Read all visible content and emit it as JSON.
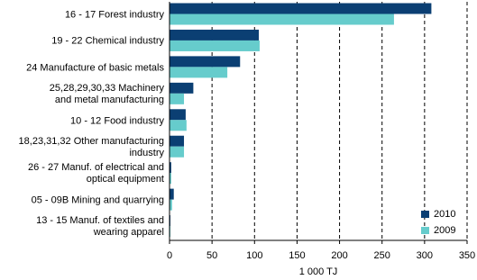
{
  "chart_data": {
    "type": "hbar",
    "categories": [
      "16 - 17 Forest industry",
      "19 - 22 Chemical industry",
      "24 Manufacture of basic metals",
      "25,28,29,30,33 Machinery\nand metal manufacturing",
      "10 - 12 Food industry",
      "18,23,31,32 Other manufacturing\nindustry",
      "26 - 27 Manuf. of electrical and\noptical equipment",
      "05 - 09B Mining and quarrying",
      "13 - 15 Manuf. of textiles and\nwearing apparel"
    ],
    "series": [
      {
        "name": "2010",
        "color": "#0b3f73",
        "values": [
          308,
          105,
          83,
          28,
          19,
          17,
          2,
          5,
          1
        ]
      },
      {
        "name": "2009",
        "color": "#66cccc",
        "values": [
          264,
          106,
          68,
          17,
          20,
          17,
          2,
          3,
          1
        ]
      }
    ],
    "xlabel": "1 000 TJ",
    "xlim": [
      0,
      350
    ],
    "xticks": [
      0,
      50,
      100,
      150,
      200,
      250,
      300,
      350
    ],
    "grid": true,
    "legend": "lower right"
  }
}
